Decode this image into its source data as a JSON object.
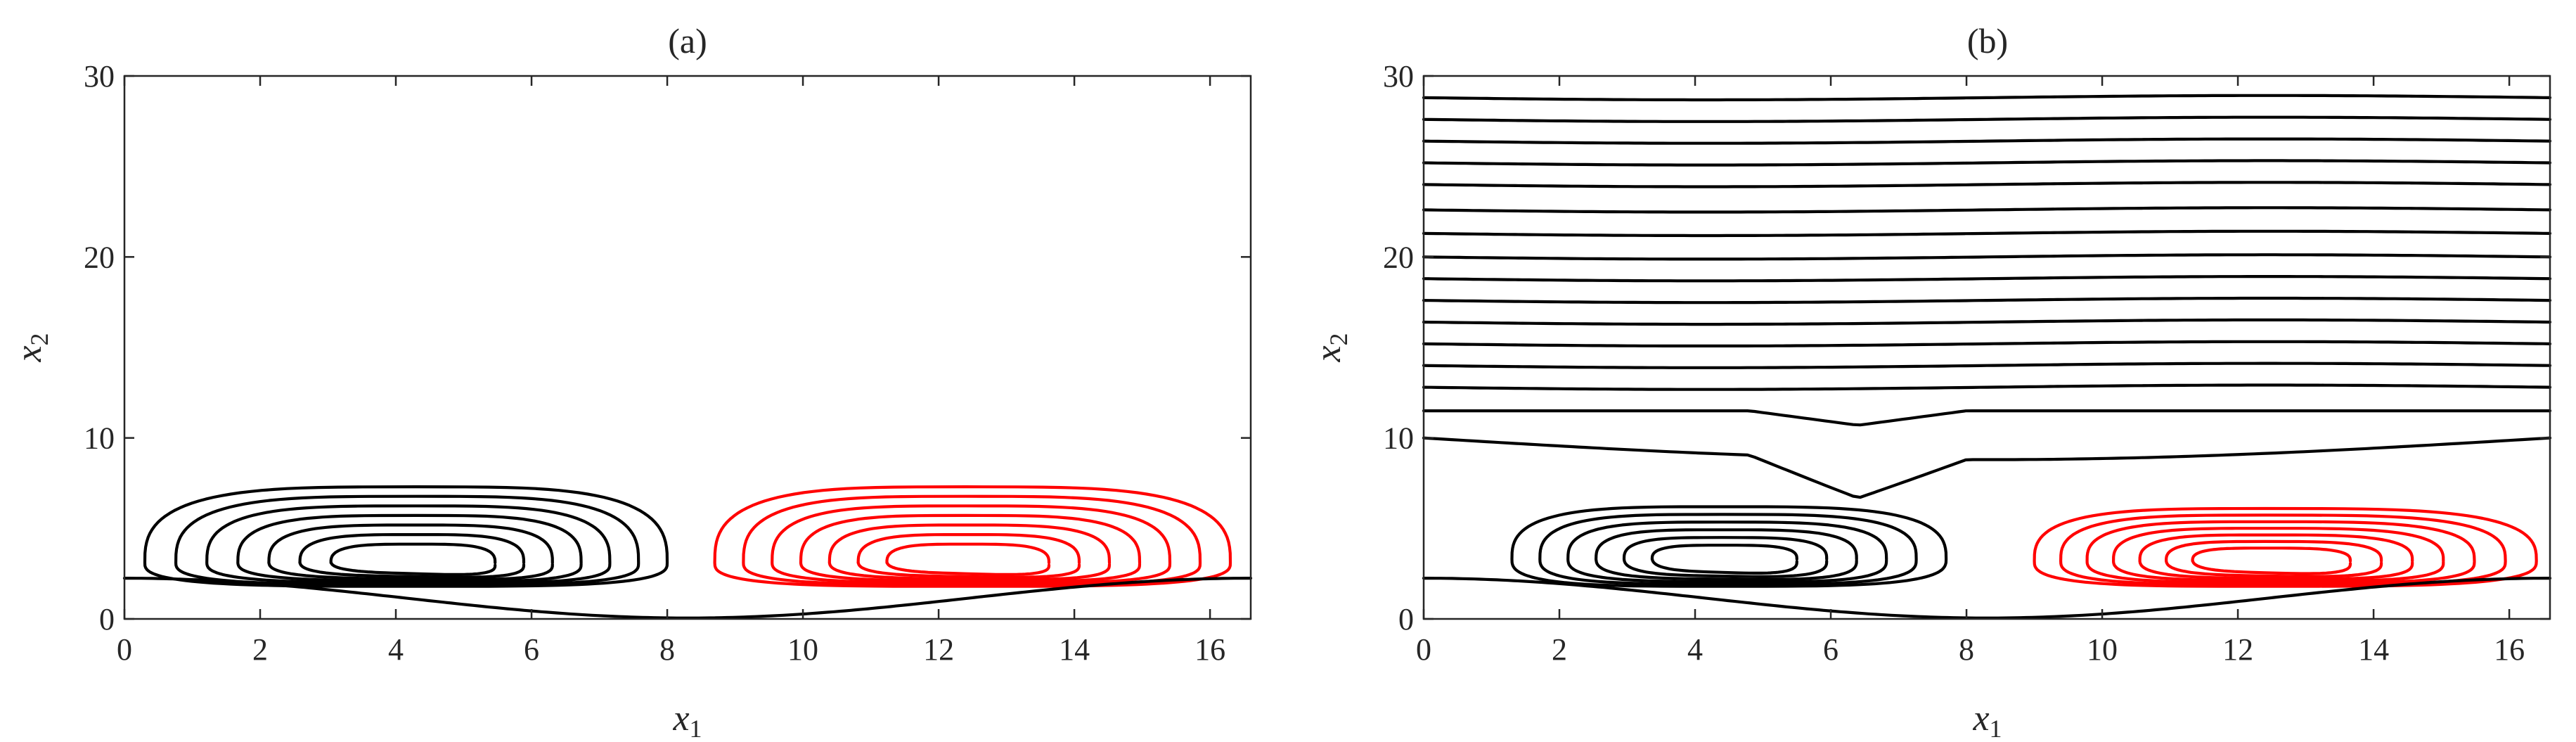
{
  "colors": {
    "positive": "#000000",
    "negative": "#ff0000",
    "axis": "#262626"
  },
  "chart_data": [
    {
      "type": "contour",
      "title": "(a)",
      "xlabel": {
        "var": "x",
        "sub": "1"
      },
      "ylabel": {
        "var": "x",
        "sub": "2"
      },
      "xlim": [
        0,
        16.6
      ],
      "ylim": [
        0,
        30
      ],
      "xticks": [
        "0",
        "2",
        "4",
        "6",
        "8",
        "10",
        "12",
        "14",
        "16"
      ],
      "yticks": [
        "0",
        "10",
        "20",
        "30"
      ],
      "vortices": [
        {
          "sign": "positive",
          "center": [
            4.3,
            3.1
          ],
          "x_extent": [
            0.3,
            8.0
          ],
          "y_extent": [
            1.8,
            7.3
          ],
          "levels": 7
        },
        {
          "sign": "negative",
          "center": [
            12.4,
            3.1
          ],
          "x_extent": [
            8.7,
            16.3
          ],
          "y_extent": [
            1.8,
            7.3
          ],
          "levels": 7
        }
      ],
      "wall_contour": true,
      "freestream_lines": []
    },
    {
      "type": "contour",
      "title": "(b)",
      "xlabel": {
        "var": "x",
        "sub": "1"
      },
      "ylabel": {
        "var": "x",
        "sub": "2"
      },
      "xlim": [
        0,
        16.6
      ],
      "ylim": [
        0,
        30
      ],
      "xticks": [
        "0",
        "2",
        "4",
        "6",
        "8",
        "10",
        "12",
        "14",
        "16"
      ],
      "yticks": [
        "0",
        "10",
        "20",
        "30"
      ],
      "vortices": [
        {
          "sign": "positive",
          "center": [
            4.4,
            3.3
          ],
          "x_extent": [
            1.3,
            7.7
          ],
          "y_extent": [
            1.8,
            6.2
          ],
          "levels": 6
        },
        {
          "sign": "negative",
          "center": [
            12.4,
            3.2
          ],
          "x_extent": [
            9.0,
            16.4
          ],
          "y_extent": [
            1.8,
            6.1
          ],
          "levels": 7
        }
      ],
      "wall_contour": true,
      "freestream_lines": [
        10.0,
        11.5,
        12.8,
        14.0,
        15.2,
        16.4,
        17.6,
        18.8,
        20.0,
        21.3,
        22.6,
        24.0,
        25.2,
        26.4,
        27.6,
        28.8
      ]
    }
  ]
}
